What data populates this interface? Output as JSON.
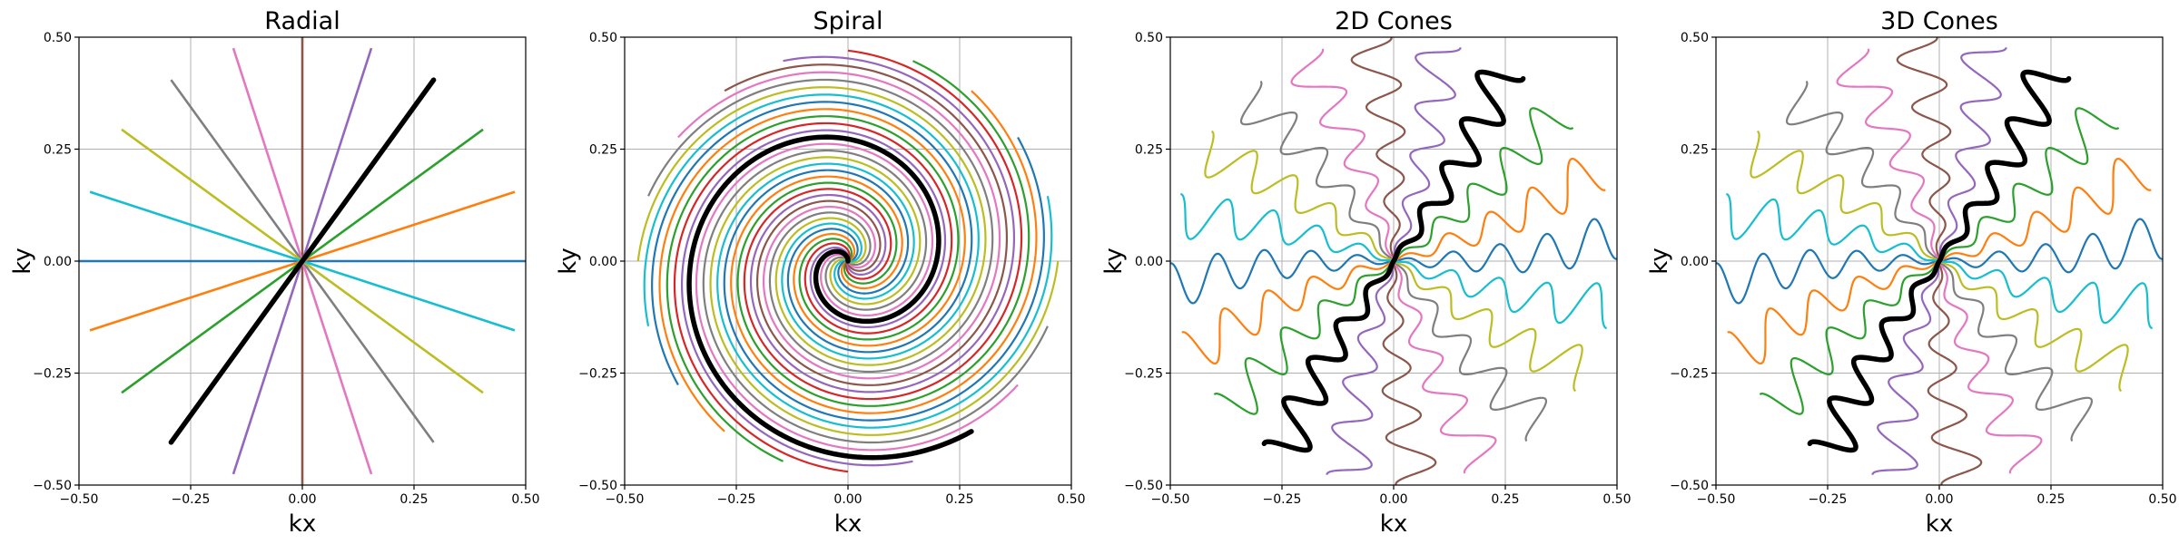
{
  "chart_data": [
    {
      "type": "line",
      "title": "Radial",
      "xlabel": "kx",
      "ylabel": "ky",
      "xlim": [
        -0.5,
        0.5
      ],
      "ylim": [
        -0.5,
        0.5
      ],
      "xticks": [
        "−0.50",
        "−0.25",
        "0.00",
        "0.25",
        "0.50"
      ],
      "yticks": [
        "−0.50",
        "−0.25",
        "0.00",
        "0.25",
        "0.50"
      ],
      "grid": true,
      "pattern": "radial",
      "highlight_color": "#000000"
    },
    {
      "type": "line",
      "title": "Spiral",
      "xlabel": "kx",
      "ylabel": "ky",
      "xlim": [
        -0.5,
        0.5
      ],
      "ylim": [
        -0.5,
        0.5
      ],
      "xticks": [
        "−0.50",
        "−0.25",
        "0.00",
        "0.25",
        "0.50"
      ],
      "yticks": [
        "−0.50",
        "−0.25",
        "0.00",
        "0.25",
        "0.50"
      ],
      "grid": true,
      "pattern": "spiral",
      "highlight_color": "#000000"
    },
    {
      "type": "line",
      "title": "2D Cones",
      "xlabel": "kx",
      "ylabel": "ky",
      "xlim": [
        -0.5,
        0.5
      ],
      "ylim": [
        -0.5,
        0.5
      ],
      "xticks": [
        "−0.50",
        "−0.25",
        "0.00",
        "0.25",
        "0.50"
      ],
      "yticks": [
        "−0.50",
        "−0.25",
        "0.00",
        "0.25",
        "0.50"
      ],
      "grid": true,
      "pattern": "cones",
      "highlight_color": "#000000"
    },
    {
      "type": "line",
      "title": "3D Cones",
      "xlabel": "kx",
      "ylabel": "ky",
      "xlim": [
        -0.5,
        0.5
      ],
      "ylim": [
        -0.5,
        0.5
      ],
      "xticks": [
        "−0.50",
        "−0.25",
        "0.00",
        "0.25",
        "0.50"
      ],
      "yticks": [
        "−0.50",
        "−0.25",
        "0.00",
        "0.25",
        "0.50"
      ],
      "grid": true,
      "pattern": "cones",
      "highlight_color": "#000000"
    }
  ],
  "palette": [
    "#1f77b4",
    "#ff7f0e",
    "#2ca02c",
    "#d62728",
    "#9467bd",
    "#8c564b",
    "#e377c2",
    "#7f7f7f",
    "#bcbd22",
    "#17becf"
  ]
}
